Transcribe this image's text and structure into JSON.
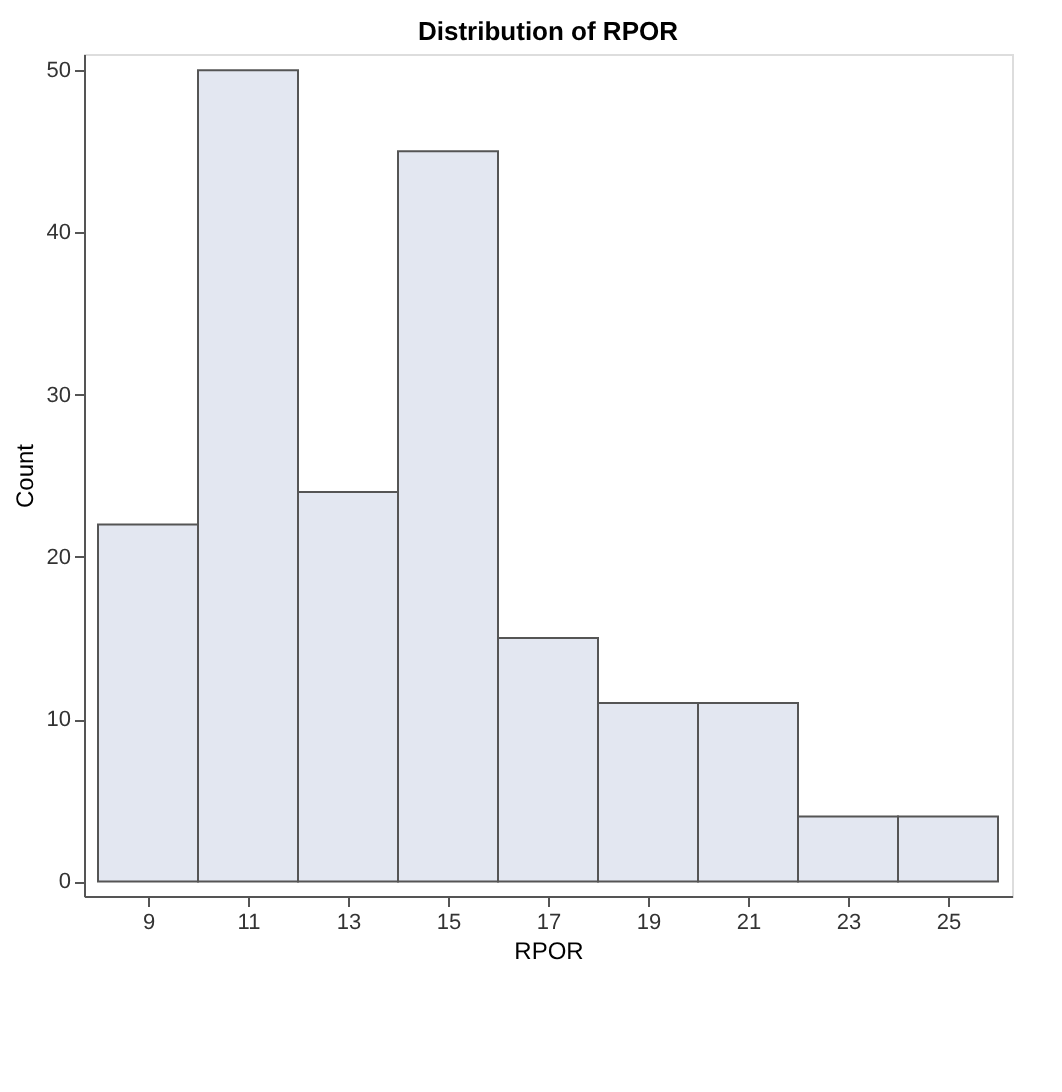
{
  "chart_data": {
    "type": "histogram",
    "title": "Distribution of RPOR",
    "xlabel": "RPOR",
    "ylabel": "Count",
    "bins": [
      8,
      10,
      12,
      14,
      16,
      18,
      20,
      22,
      24,
      26
    ],
    "values": [
      22,
      50,
      24,
      45,
      15,
      11,
      11,
      4,
      4
    ],
    "color": "#e3e7f1",
    "xlim": [
      7.72,
      26.28
    ],
    "xticks": [
      9,
      11,
      13,
      15,
      17,
      19,
      21,
      23,
      25
    ],
    "ylim": [
      -0.9,
      51
    ],
    "yticks": [
      0,
      10,
      20,
      30,
      40,
      50
    ],
    "grid": false
  }
}
